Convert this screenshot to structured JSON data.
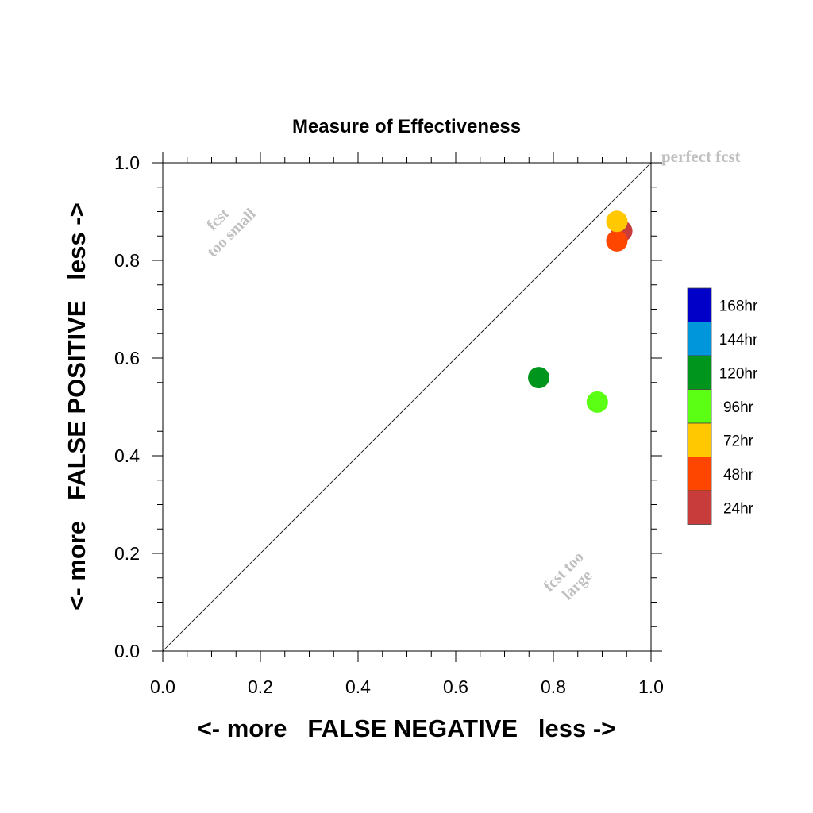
{
  "chart_data": {
    "type": "scatter",
    "title": "Measure of Effectiveness",
    "xlabel": "<- more   FALSE NEGATIVE   less ->",
    "ylabel": "<- more   FALSE POSITIVE   less ->",
    "xlim": [
      0.0,
      1.0
    ],
    "ylim": [
      0.0,
      1.0
    ],
    "x_ticks": [
      "0.0",
      "0.2",
      "0.4",
      "0.6",
      "0.8",
      "1.0"
    ],
    "y_ticks": [
      "0.0",
      "0.2",
      "0.4",
      "0.6",
      "0.8",
      "1.0"
    ],
    "grid": false,
    "diagonal_line": true,
    "annotations": {
      "perfect": "perfect fcst",
      "small_line1": "fcst",
      "small_line2": "too small",
      "large_line1": "fcst too",
      "large_line2": "large"
    },
    "legend": [
      {
        "label": "168hr",
        "color": "#0000c8"
      },
      {
        "label": "144hr",
        "color": "#0096dc"
      },
      {
        "label": "120hr",
        "color": "#00961e"
      },
      {
        "label": "96hr",
        "color": "#5aff14"
      },
      {
        "label": "72hr",
        "color": "#ffc800"
      },
      {
        "label": "48hr",
        "color": "#ff4600"
      },
      {
        "label": "24hr",
        "color": "#c83c3c"
      }
    ],
    "points": [
      {
        "label": "24hr",
        "x": 0.94,
        "y": 0.86,
        "color": "#c83c3c"
      },
      {
        "label": "48hr",
        "x": 0.93,
        "y": 0.84,
        "color": "#ff4600"
      },
      {
        "label": "72hr",
        "x": 0.93,
        "y": 0.88,
        "color": "#ffc800"
      },
      {
        "label": "96hr",
        "x": 0.89,
        "y": 0.51,
        "color": "#5aff14"
      },
      {
        "label": "120hr",
        "x": 0.77,
        "y": 0.56,
        "color": "#00961e"
      }
    ]
  }
}
